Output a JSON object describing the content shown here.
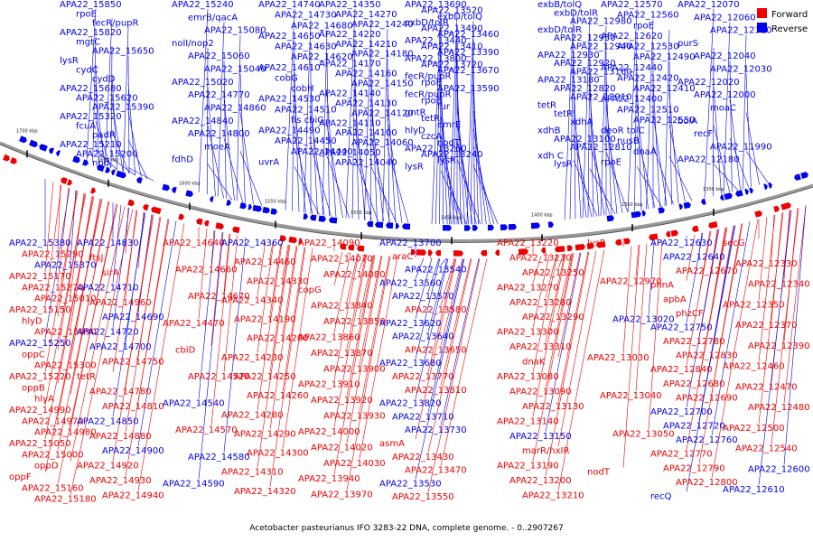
{
  "caption": "Acetobacter pasteurianus IFO 3283-22 DNA, complete genome. - 0..2907267",
  "legend": [
    {
      "label": "Forward",
      "color": "#ee0000"
    },
    {
      "label": "Reverse",
      "color": "#0000ee"
    }
  ],
  "colors": {
    "forward": "#ee0000",
    "reverse": "#0000ee",
    "backbone": "#9a9a9a"
  },
  "kbp_labels": [
    "1700 kbp",
    "1650 kbp",
    "1600 kbp",
    "1550 kbp",
    "1500 kbp",
    "1450 kbp",
    "1400 kbp",
    "1350 kbp",
    "1300 kbp"
  ],
  "top_labels": [
    "APA22_15850",
    "rpoE",
    "fecR/pupR",
    "APA22_15820",
    "mgtC",
    "APA22_15650",
    "lysR",
    "cydC",
    "cydD",
    "APA22_15680",
    "APA22_15620",
    "APA22_15390",
    "APA22_15320",
    "fcuA",
    "padR",
    "APA22_15210",
    "APA22_15200",
    "npd",
    "APA22_15240",
    "emrB/qacA",
    "APA22_15080",
    "nolI/nop2",
    "APA22_15060",
    "APA22_15040",
    "APA22_15020",
    "APA22_14770",
    "APA22_14860",
    "APA22_14840",
    "APA22_14800",
    "moeA",
    "fdhD",
    "APA22_14740",
    "APA22_14730",
    "APA22_14680",
    "APA22_14650",
    "APA22_14630",
    "APA22_14620",
    "APA22_14610",
    "cobG",
    "cobH",
    "APA22_14530",
    "APA22_14510",
    "fis cbiG",
    "APA22_14490",
    "APA22_14450",
    "APA22_14440",
    "uvrA",
    "APA22_14350",
    "APA22_14270",
    "APA22_14240",
    "APA22_14220",
    "APA22_14210",
    "APA22_14180",
    "APA22_14170",
    "APA22_14160",
    "APA22_14150",
    "APA22_14140",
    "APA22_14130",
    "APA22_14120",
    "APA22_14110",
    "APA22_14100",
    "APA22_14060",
    "APA22_14050",
    "APA22_14040",
    "APA22_13690",
    "APA22_13520",
    "exbD/tolQ",
    "exbD/tolR",
    "APA22_13490",
    "APA22_13460",
    "APA22_13440",
    "APA22_13410",
    "APA22_13390",
    "APA22_13800",
    "APA22_13720",
    "APA22_13670",
    "fecR/pupR",
    "rpoE",
    "APA22_13590",
    "fecR/pupR",
    "rpoE",
    "fur",
    "gntR",
    "tetR",
    "emrE",
    "hlyD",
    "czcA",
    "nodT",
    "APA22_13260",
    "APA22_13240",
    "lysR",
    "lysR",
    "exbB/tolQ",
    "exbD/tolR",
    "APA22_12980",
    "exbD/tolR",
    "APA22_12950",
    "APA22_12940",
    "APA22_12930",
    "APA22_12920",
    "APA22_13160",
    "APA22_13180",
    "APA22_12820",
    "APA22_12910",
    "tetR",
    "tetR",
    "xdhA",
    "xdhB",
    "APA22_13100",
    "APA22_12810",
    "xdh C",
    "lysR",
    "APA22_12570",
    "APA22_12560",
    "rpoE",
    "APA22_12620",
    "APA22_12530",
    "APA22_12490",
    "APA22_12440",
    "APA22_12420",
    "APA22_12410",
    "APA22_12400",
    "APA22_12510",
    "APA22_12550",
    "deoR tolC",
    "nusB",
    "dnaA",
    "rpoE",
    "APA22_12070",
    "APA22_12060",
    "APA22_12310",
    "purS",
    "APA22_12040",
    "APA22_12030",
    "APA22_12020",
    "APA22_12000",
    "moaC",
    "bolA",
    "recF",
    "APA22_11990",
    "APA22_12180"
  ],
  "bottom_labels": [
    "APA22_15380",
    "APA22_15290",
    "APA22_15370",
    "APA22_15170",
    "APA22_15270",
    "APA22_15010",
    "APA22_15150",
    "hlyD",
    "APA22_15090",
    "APA22_15250",
    "oppC",
    "APA22_15300",
    "APA22_15220",
    "oppB",
    "hlyA",
    "APA22_14990",
    "APA22_14970",
    "APA22_14980",
    "APA22_15050",
    "APA22_15000",
    "oppD",
    "oppF",
    "APA22_15160",
    "APA22_15180",
    "APA22_14830",
    "ftsJ",
    "sirA",
    "APA22_14710",
    "APA22_14960",
    "APA22_14690",
    "APA22_14720",
    "APA22_14700",
    "APA22_14750",
    "tetR",
    "APA22_14780",
    "APA22_14810",
    "APA22_14850",
    "APA22_14880",
    "APA22_14900",
    "APA22_14920",
    "APA22_14930",
    "APA22_14940",
    "APA22_14640",
    "APA22_14660",
    "APA22_14670",
    "APA22_14470",
    "cbiD",
    "APA22_14520",
    "APA22_14540",
    "APA22_14570",
    "APA22_14580",
    "APA22_14590",
    "APA22_14360",
    "APA22_14460",
    "APA22_14330",
    "APA22_14340",
    "APA22_14190",
    "APA22_14200",
    "APA22_14230",
    "APA22_14250",
    "APA22_14260",
    "APA22_14280",
    "APA22_14290",
    "APA22_14300",
    "APA22_14310",
    "APA22_14320",
    "APA22_14090",
    "APA22_14070",
    "APA22_14080",
    "copG",
    "APA22_13840",
    "APA22_13850",
    "APA22_13860",
    "APA22_13870",
    "APA22_13900",
    "APA22_13910",
    "APA22_13920",
    "APA22_13930",
    "APA22_14000",
    "APA22_14020",
    "APA22_14030",
    "APA22_13940",
    "APA22_13970",
    "APA22_13700",
    "araC",
    "APA22_13540",
    "APA22_13560",
    "APA22_13570",
    "APA22_13580",
    "APA22_13620",
    "APA22_13640",
    "APA22_13650",
    "APA22_13680",
    "APA22_13770",
    "APA22_13810",
    "APA22_13820",
    "APA22_13710",
    "APA22_13730",
    "asmA",
    "APA22_13430",
    "APA22_13470",
    "APA22_13530",
    "APA22_13550",
    "APA22_13220",
    "APA22_13230",
    "APA22_13250",
    "APA22_13270",
    "APA22_13280",
    "APA22_13290",
    "APA22_13300",
    "APA22_13310",
    "dnaK",
    "APA22_13080",
    "APA22_13090",
    "APA22_13130",
    "APA22_13140",
    "APA22_13150",
    "marR/hxIR",
    "APA22_13190",
    "APA22_13200",
    "APA22_13210",
    "lysR",
    "APA22_12970",
    "APA22_13020",
    "APA22_13030",
    "APA22_13040",
    "APA22_13050",
    "nodT",
    "APA22_12630",
    "APA22_12640",
    "APA22_12670",
    "phnA",
    "apbA",
    "phzCF",
    "APA22_12750",
    "APA22_12780",
    "APA22_12830",
    "APA22_12840",
    "APA22_12680",
    "APA22_12690",
    "APA22_12700",
    "APA22_12720",
    "APA22_12760",
    "APA22_12770",
    "APA22_12790",
    "APA22_12800",
    "recQ",
    "secG",
    "APA22_12330",
    "APA22_12340",
    "APA22_12350",
    "APA22_12370",
    "APA22_12390",
    "APA22_12460",
    "APA22_12470",
    "APA22_12480",
    "APA22_12500",
    "APA22_12540",
    "APA22_12600",
    "APA22_12610"
  ]
}
